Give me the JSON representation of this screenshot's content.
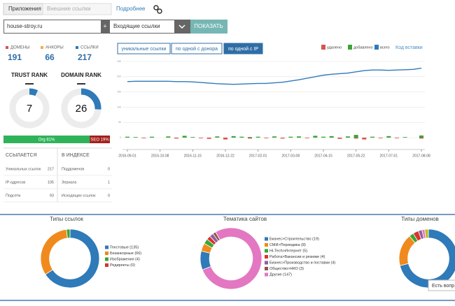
{
  "tabs": [
    "Приложения",
    "Внешние ссылки",
    "Подробнее"
  ],
  "search": {
    "domain": "house-stroy.ru",
    "add": "+",
    "mode": "Входящие ссылки",
    "button": "ПОКАЗАТЬ"
  },
  "stats": [
    {
      "label": "ДОМЕНЫ",
      "value": 191,
      "color": "#d9534f"
    },
    {
      "label": "АНКОРЫ",
      "value": 66,
      "color": "#f0ad4e"
    },
    {
      "label": "ССЫЛКИ",
      "value": 217,
      "color": "#2f7ab8"
    }
  ],
  "ranks": [
    {
      "label": "TRUST RANK",
      "value": 7
    },
    {
      "label": "DOMAIN RANK",
      "value": 26
    }
  ],
  "split": [
    {
      "label": "Org 81%",
      "value": 81,
      "color": "#2eb35a"
    },
    {
      "label": "SEO 19%",
      "value": 19,
      "color": "#a3201d"
    }
  ],
  "table": {
    "headers": [
      "ССЫЛАЕТСЯ",
      "В ИНДЕКСЕ"
    ],
    "rows": [
      [
        "Уникальных ссылок",
        217,
        "Поддоменов",
        0
      ],
      [
        "IP-адресов",
        105,
        "Зеркала",
        1
      ],
      [
        "Подсети",
        93,
        "Исходящих ссылок",
        0
      ]
    ]
  },
  "chart_data": {
    "type": "line",
    "buttons": [
      "уникальные ссылки",
      "по одной с донора",
      "по одной с IP"
    ],
    "legend_link": "Код вставки",
    "categories": [
      "2016-09-01",
      null,
      null,
      null,
      "2016-10-08",
      null,
      null,
      null,
      "2016-11-15",
      null,
      null,
      null,
      "2016-12-22",
      null,
      null,
      null,
      "2017-02-01",
      null,
      null,
      null,
      "2017-03-08",
      null,
      null,
      null,
      "2017-04-15",
      null,
      null,
      null,
      "2017-05-22",
      null,
      null,
      null,
      "2017-07-01",
      null,
      null,
      null,
      "2017-08-08"
    ],
    "ylim": [
      0,
      250
    ],
    "yticks": [
      0,
      50,
      100,
      150,
      200,
      250
    ],
    "series": [
      {
        "name": "удалено",
        "color": "#d9534f",
        "type": "bar",
        "values": [
          0,
          0,
          -2,
          0,
          0,
          0,
          -3,
          0,
          0,
          -2,
          -4,
          0,
          -6,
          0,
          0,
          -3,
          0,
          -2,
          0,
          -3,
          0,
          0,
          -2,
          0,
          0,
          0,
          -4,
          0,
          -3,
          -6,
          0,
          -2,
          0,
          -2,
          0,
          0,
          -3
        ]
      },
      {
        "name": "добавлено",
        "color": "#3aa537",
        "type": "bar",
        "values": [
          3,
          2,
          0,
          3,
          0,
          4,
          0,
          6,
          2,
          0,
          0,
          4,
          0,
          5,
          3,
          2,
          3,
          0,
          4,
          0,
          3,
          4,
          0,
          6,
          3,
          5,
          0,
          4,
          9,
          0,
          3,
          0,
          5,
          0,
          2,
          0,
          7
        ]
      },
      {
        "name": "всего",
        "color": "#2f7ab8",
        "type": "line",
        "values": [
          184,
          185,
          185,
          185,
          185,
          185,
          184,
          184,
          183,
          181,
          179,
          177,
          176,
          175,
          176,
          177,
          178,
          178,
          180,
          182,
          186,
          190,
          195,
          200,
          205,
          208,
          210,
          212,
          216,
          220,
          222,
          222,
          221,
          222,
          223,
          224,
          228
        ]
      }
    ]
  },
  "donuts": [
    {
      "title": "Типы ссылок",
      "items": [
        {
          "label": "Текстовые (135)",
          "value": 135,
          "color": "#2f7ab8"
        },
        {
          "label": "Безанкорные (66)",
          "value": 66,
          "color": "#f08a1c"
        },
        {
          "label": "Изображения (4)",
          "value": 4,
          "color": "#3aa537"
        },
        {
          "label": "Редиректы (0)",
          "value": 0,
          "color": "#d9342b"
        }
      ]
    },
    {
      "title": "Тематика сайтов",
      "items": [
        {
          "label": "Бизнес>Строительство (19)",
          "value": 19,
          "color": "#2f7ab8"
        },
        {
          "label": "СМИ>Периодика (8)",
          "value": 8,
          "color": "#f08a1c"
        },
        {
          "label": "Hi-Tech>Интернет (5)",
          "value": 5,
          "color": "#3aa537"
        },
        {
          "label": "Работа>Вакансии и резюме (4)",
          "value": 4,
          "color": "#d9342b"
        },
        {
          "label": "Бизнес>Производство и поставки (4)",
          "value": 4,
          "color": "#8e5ea2"
        },
        {
          "label": "Общество>НКО (3)",
          "value": 3,
          "color": "#8c564b"
        },
        {
          "label": "Другие (147)",
          "value": 147,
          "color": "#e377c2"
        }
      ]
    },
    {
      "title": "Типы доменов",
      "items": [
        {
          "value": 140,
          "color": "#2f7ab8"
        },
        {
          "value": 35,
          "color": "#f08a1c"
        },
        {
          "value": 5,
          "color": "#3aa537"
        },
        {
          "value": 6,
          "color": "#d9342b"
        },
        {
          "value": 4,
          "color": "#8e5ea2"
        },
        {
          "value": 3,
          "color": "#e377c2"
        },
        {
          "value": 4,
          "color": "#bcbd22"
        }
      ]
    }
  ],
  "tooltip": "Есть вопр"
}
